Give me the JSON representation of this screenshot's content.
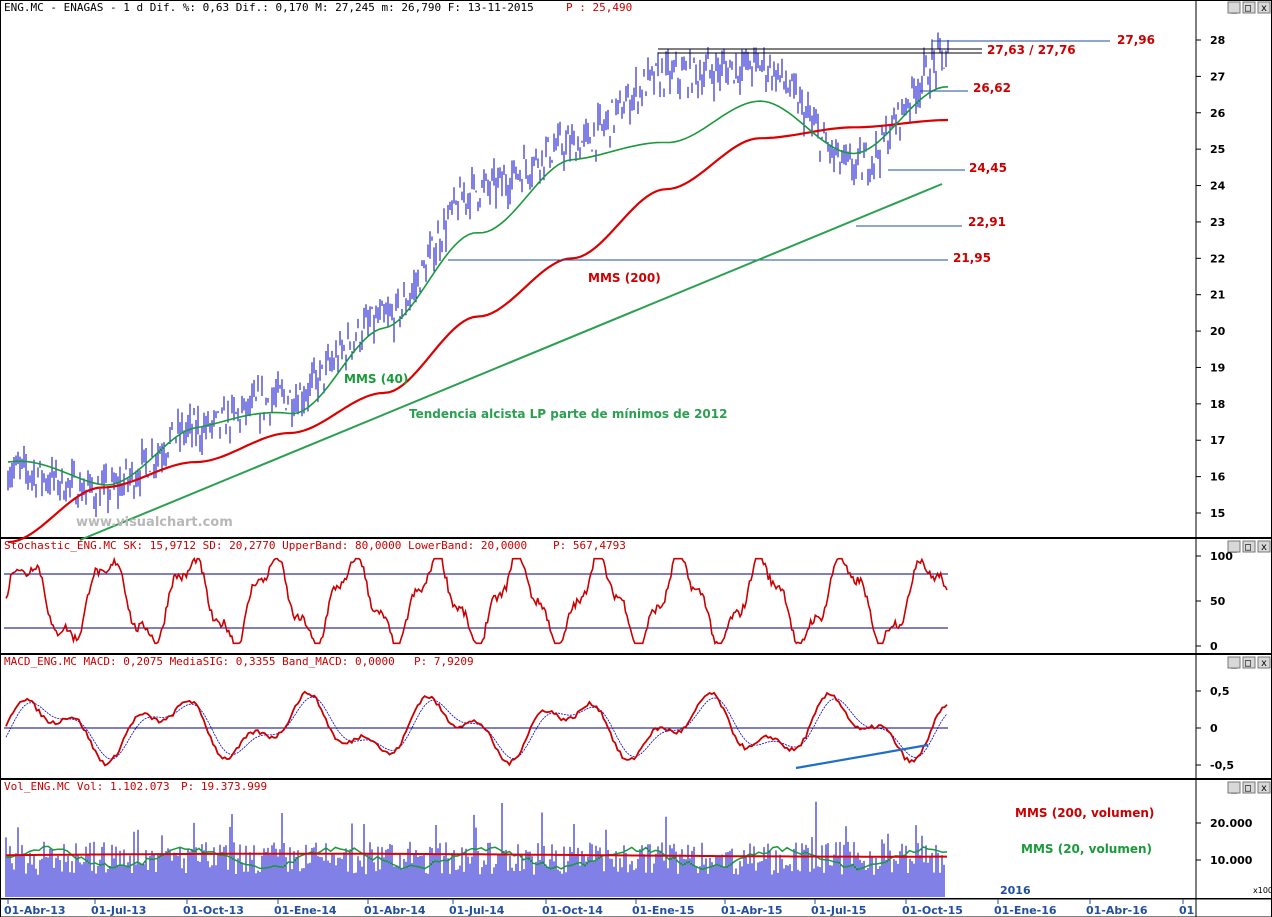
{
  "window_buttons": [
    "_",
    "□",
    "x"
  ],
  "price_panel": {
    "header": "ENG.MC - ENAGAS - 1 d Dif. %: 0,63 Dif.: 0,170 M: 27,245 m: 26,790 F: 13-11-2015",
    "header_p": "P : 25,490",
    "watermark": "www.visualchart.com",
    "annotations": {
      "r2796": "27,96",
      "r2763": "27,63 / 27,76",
      "r2662": "26,62",
      "r2445": "24,45",
      "r2291": "22,91",
      "r2195": "21,95",
      "mms200": "MMS (200)",
      "mms40": "MMS (40)",
      "trend": "Tendencia alcista LP parte de mínimos de 2012"
    },
    "y_ticks": [
      "28",
      "27",
      "26",
      "25",
      "24",
      "23",
      "22",
      "21",
      "20",
      "19",
      "18",
      "17",
      "16",
      "15"
    ]
  },
  "stoch_panel": {
    "header": "Stochastic_ENG.MC SK: 15,9712 SD: 20,2770 UpperBand: 80,0000 LowerBand: 20,0000",
    "header_p": "P: 567,4793",
    "y_ticks": [
      "100",
      "50",
      "0"
    ]
  },
  "macd_panel": {
    "header": "MACD_ENG.MC MACD: 0,2075 MediaSIG: 0,3355 Band_MACD: 0,0000",
    "header_p": "P: 7,9209",
    "y_ticks": [
      "0,5",
      "0",
      "-0,5"
    ]
  },
  "vol_panel": {
    "header": "Vol_ENG.MC Vol: 1.102.073",
    "header_p": "P: 19.373.999",
    "y_ticks": [
      "20.000",
      "10.000"
    ],
    "x100": "x100",
    "mms200v": "MMS (200, volumen)",
    "mms20v": "MMS (20, volumen)",
    "year_label": "2016"
  },
  "x_labels": [
    "01-Abr-13",
    "01-Jul-13",
    "01-Oct-13",
    "01-Ene-14",
    "01-Abr-14",
    "01-Jul-14",
    "01-Oct-14",
    "01-Ene-15",
    "01-Abr-15",
    "01-Jul-15",
    "01-Oct-15",
    "01-Ene-16",
    "01-Abr-16",
    "01"
  ],
  "colors": {
    "price": "#0000cc",
    "mms40": "#1a9a3a",
    "mms200": "#dd0000",
    "trend": "#2aa050",
    "support": "#1f4fa0",
    "stoch": "#cc0000",
    "band": "#000080",
    "macd": "#cc0000",
    "signal": "#0000cc",
    "vol": "#0000cc",
    "divergence": "#1f6fc8"
  },
  "chart_data": {
    "type": "line",
    "title": "ENG.MC - ENAGAS",
    "x_axis": [
      "01-Abr-13",
      "01-Jul-13",
      "01-Oct-13",
      "01-Ene-14",
      "01-Abr-14",
      "01-Jul-14",
      "01-Oct-14",
      "01-Ene-15",
      "01-Abr-15",
      "01-Jul-15",
      "01-Oct-15"
    ],
    "price_ylim": [
      14.5,
      28.3
    ],
    "series": [
      {
        "name": "ENG.MC",
        "values": [
          16.2,
          15.6,
          17.3,
          18.2,
          20.3,
          23.9,
          25.1,
          27.0,
          27.3,
          24.5,
          27.5
        ]
      },
      {
        "name": "MMS (40)",
        "values": [
          16.4,
          15.8,
          17.3,
          17.8,
          20.0,
          22.8,
          24.6,
          25.3,
          26.2,
          25.0,
          26.6
        ]
      },
      {
        "name": "MMS (200)",
        "values": [
          14.2,
          15.7,
          16.4,
          17.2,
          18.3,
          20.4,
          22.0,
          23.9,
          25.3,
          25.6,
          25.8
        ]
      }
    ],
    "levels": [
      27.96,
      27.76,
      27.63,
      26.62,
      24.45,
      22.91,
      21.95
    ],
    "stochastic": {
      "SK": 15.9712,
      "SD": 20.277,
      "UpperBand": 80,
      "LowerBand": 20,
      "ylim": [
        0,
        100
      ]
    },
    "macd": {
      "MACD": 0.2075,
      "MediaSIG": 0.3355,
      "Band_MACD": 0,
      "ylim": [
        -0.6,
        0.7
      ]
    },
    "volume": {
      "last": 1102073,
      "ylim": [
        0,
        25000
      ],
      "unit": "x100"
    }
  }
}
